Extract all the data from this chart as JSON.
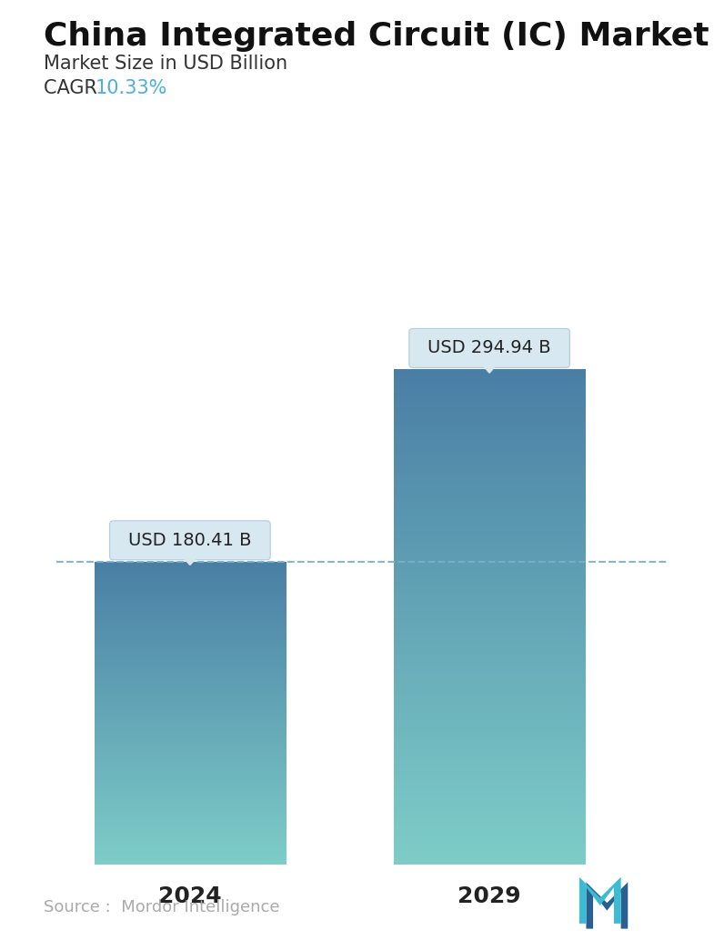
{
  "title": "China Integrated Circuit (IC) Market",
  "subtitle": "Market Size in USD Billion",
  "cagr_label": "CAGR  ",
  "cagr_value": "10.33%",
  "cagr_color": "#4AAFE0",
  "categories": [
    "2024",
    "2029"
  ],
  "values": [
    180.41,
    294.94
  ],
  "labels": [
    "USD 180.41 B",
    "USD 294.94 B"
  ],
  "bar_color_top": "#4A7FA5",
  "bar_color_bottom": "#7ECDC8",
  "dashed_line_color": "#7AAFC8",
  "background_color": "#FFFFFF",
  "source_text": "Source :  Mordor Intelligence",
  "source_color": "#AAAAAA",
  "title_fontsize": 26,
  "subtitle_fontsize": 15,
  "cagr_fontsize": 15,
  "label_fontsize": 14,
  "tick_fontsize": 18,
  "source_fontsize": 13,
  "tooltip_bg": "#D8E8F0",
  "tooltip_border": "#B0CCE0"
}
